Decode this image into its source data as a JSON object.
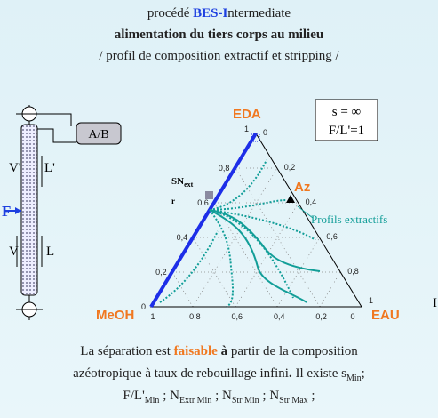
{
  "header": {
    "line1": {
      "prefix": "procédé ",
      "highlight": "BES-I",
      "suffix": "ntermediate"
    },
    "line2": "alimentation du tiers corps au milieu",
    "line3": "/ profil de composition extractif et stripping /"
  },
  "column": {
    "decanter": "A/B",
    "vapor_top": "V'",
    "liquid_top": "L'",
    "feed": "F",
    "vapor_bottom": "V",
    "liquid_bottom": "L"
  },
  "parameters": [
    "s = ∞",
    "F/L'=1"
  ],
  "diagram": {
    "vertices": {
      "top": "EDA",
      "left": "MeOH",
      "right": "EAU"
    },
    "azeotrope": "Az",
    "saddle": {
      "base": "SN",
      "sub": "ext",
      "suffix": "r"
    },
    "profile_label": "Profils extractifs",
    "left_ticks": [
      "0,8",
      "0,6",
      "0,4",
      "0,2",
      "0"
    ],
    "right_ticks": [
      "0",
      "0,2",
      "0,4",
      "0,6",
      "0,8",
      "1"
    ],
    "bottom_ticks": [
      "1",
      "0,8",
      "0,6",
      "0,4",
      "0,2",
      "0"
    ],
    "top_tick": "1"
  },
  "edge_mark": "I",
  "footer": {
    "line1": [
      "La séparation est ",
      "faisable",
      " à",
      " partir de la composition"
    ],
    "line2": [
      "azéotropique à taux de rebouillage infini",
      ".",
      " Il existe s",
      "Min",
      ";"
    ],
    "line3": [
      "F/L'",
      "Min",
      " ; N",
      "Extr Min",
      " ; N",
      "Str Min",
      " ; N",
      "Str Max",
      " ;"
    ]
  }
}
